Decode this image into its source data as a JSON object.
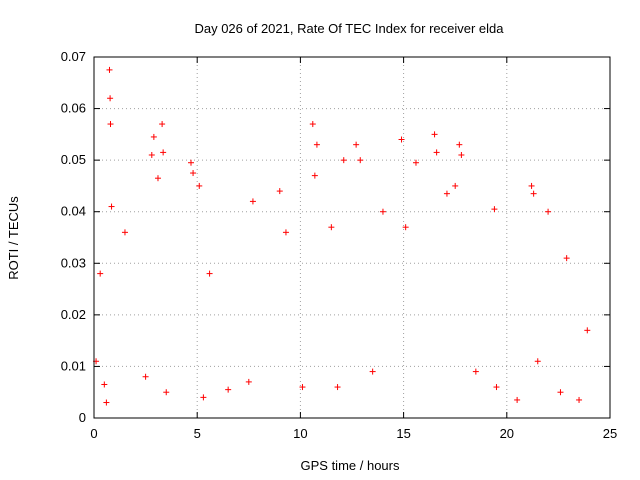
{
  "chart_data": {
    "type": "scatter",
    "title": "Day 026 of 2021, Rate Of TEC Index for receiver elda",
    "xlabel": "GPS time / hours",
    "ylabel": "ROTI / TECUs",
    "xlim": [
      0,
      25
    ],
    "ylim": [
      0,
      0.07
    ],
    "x_ticks": [
      "0",
      "5",
      "10",
      "15",
      "20",
      "25"
    ],
    "y_ticks": [
      "0",
      "0.01",
      "0.02",
      "0.03",
      "0.04",
      "0.05",
      "0.06",
      "0.07"
    ],
    "grid": true,
    "marker": "plus",
    "color": "#ff0000",
    "series": [
      {
        "values": [
          [
            0.1,
            0.011
          ],
          [
            0.3,
            0.028
          ],
          [
            0.5,
            0.0065
          ],
          [
            0.6,
            0.003
          ],
          [
            0.75,
            0.0675
          ],
          [
            0.78,
            0.062
          ],
          [
            0.8,
            0.057
          ],
          [
            0.85,
            0.041
          ],
          [
            1.5,
            0.036
          ],
          [
            2.5,
            0.008
          ],
          [
            2.8,
            0.051
          ],
          [
            2.9,
            0.0545
          ],
          [
            3.1,
            0.0465
          ],
          [
            3.3,
            0.057
          ],
          [
            3.35,
            0.0515
          ],
          [
            3.5,
            0.005
          ],
          [
            4.7,
            0.0495
          ],
          [
            4.8,
            0.0475
          ],
          [
            5.1,
            0.045
          ],
          [
            5.3,
            0.004
          ],
          [
            5.6,
            0.028
          ],
          [
            6.5,
            0.0055
          ],
          [
            7.5,
            0.007
          ],
          [
            7.7,
            0.042
          ],
          [
            9.0,
            0.044
          ],
          [
            9.3,
            0.036
          ],
          [
            10.1,
            0.006
          ],
          [
            10.6,
            0.057
          ],
          [
            10.7,
            0.047
          ],
          [
            10.8,
            0.053
          ],
          [
            11.5,
            0.037
          ],
          [
            11.8,
            0.006
          ],
          [
            12.1,
            0.05
          ],
          [
            12.7,
            0.053
          ],
          [
            12.9,
            0.05
          ],
          [
            13.5,
            0.009
          ],
          [
            14.0,
            0.04
          ],
          [
            14.9,
            0.054
          ],
          [
            15.1,
            0.037
          ],
          [
            15.6,
            0.0495
          ],
          [
            16.5,
            0.055
          ],
          [
            16.6,
            0.0515
          ],
          [
            17.1,
            0.0435
          ],
          [
            17.5,
            0.045
          ],
          [
            17.7,
            0.053
          ],
          [
            17.8,
            0.051
          ],
          [
            18.5,
            0.009
          ],
          [
            19.4,
            0.0405
          ],
          [
            19.5,
            0.006
          ],
          [
            20.5,
            0.0035
          ],
          [
            21.2,
            0.045
          ],
          [
            21.3,
            0.0435
          ],
          [
            21.5,
            0.011
          ],
          [
            22.0,
            0.04
          ],
          [
            22.6,
            0.005
          ],
          [
            22.9,
            0.031
          ],
          [
            23.5,
            0.0035
          ],
          [
            23.9,
            0.017
          ]
        ]
      }
    ]
  }
}
